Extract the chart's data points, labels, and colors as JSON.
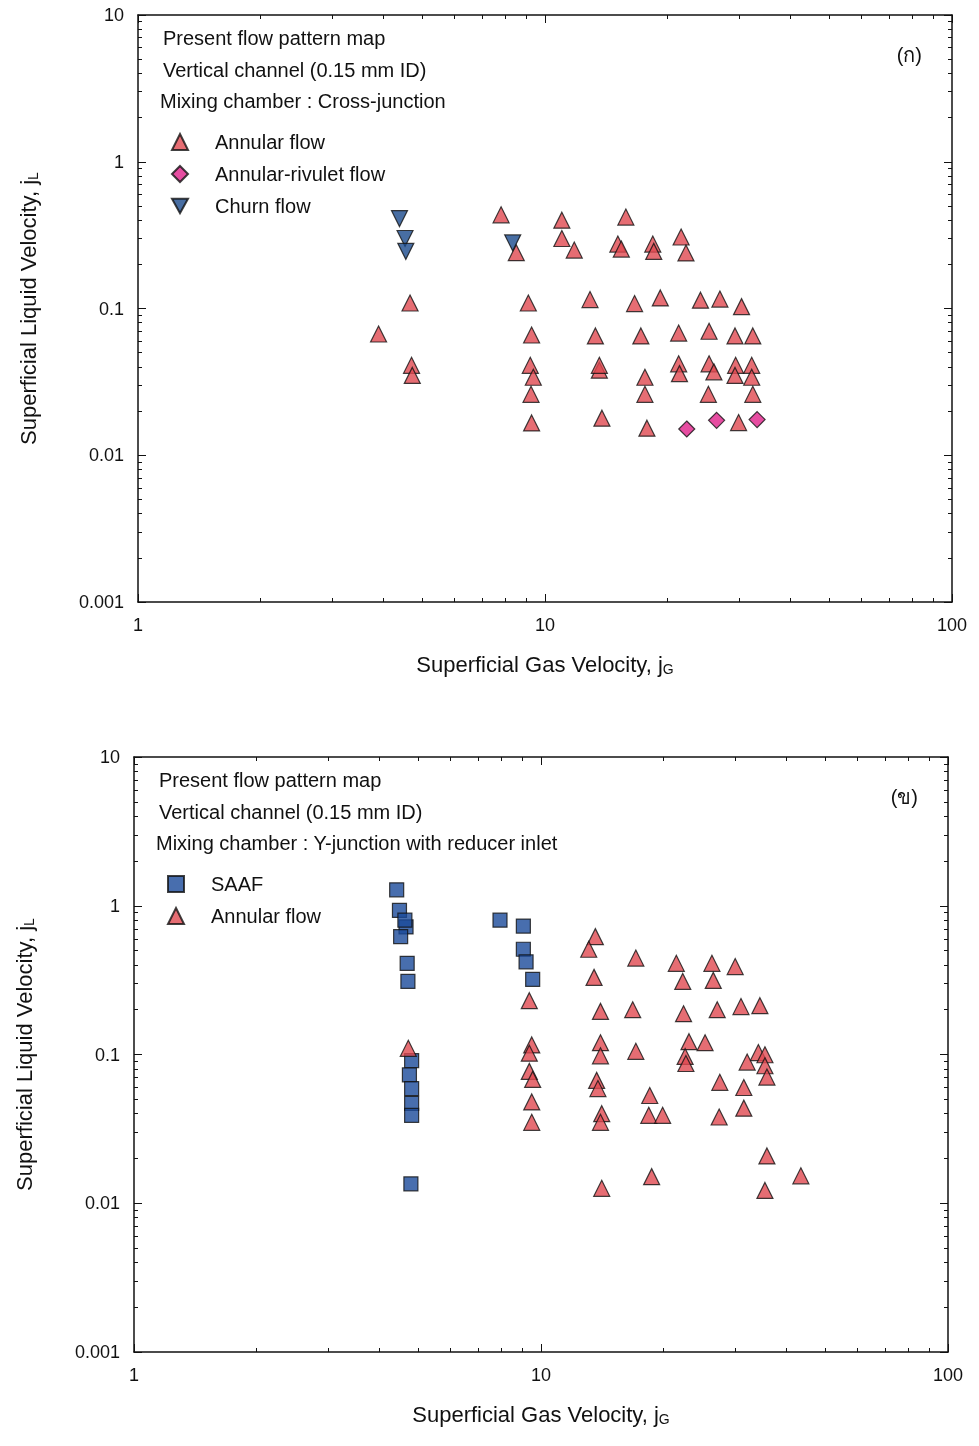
{
  "chart_data": [
    {
      "type": "scatter",
      "title": "Present flow pattern map",
      "subtitle": "Vertical channel (0.15 mm ID)",
      "annotations": [
        "Mixing chamber : Cross-junction",
        "(ก)"
      ],
      "xlabel": "Superficial Gas Velocity, j$_{G}$",
      "ylabel": "Superficial Liquid Velocity, j$_{L}$",
      "log": "xy",
      "xlim": [
        1,
        100
      ],
      "xticks": [
        1,
        10,
        100
      ],
      "ylim": [
        0.001,
        10
      ],
      "yticks": [
        0.001,
        0.01,
        0.1,
        1,
        10
      ],
      "grid": false,
      "legend": "top left",
      "series": [
        {
          "name": "Annular flow",
          "color": "#e04850",
          "marker": "triangle",
          "x": [
            7.8,
            11.0,
            15.8,
            11.0,
            11.8,
            8.5,
            15.1,
            15.4,
            18.4,
            18.5,
            21.6,
            22.2,
            4.66,
            9.1,
            12.9,
            16.6,
            19.2,
            24.1,
            26.9,
            30.4,
            3.9,
            9.27,
            13.3,
            17.2,
            21.3,
            25.3,
            29.3,
            32.4,
            4.7,
            4.72,
            9.2,
            9.36,
            13.6,
            13.6,
            17.6,
            21.3,
            21.4,
            25.3,
            26.0,
            29.4,
            29.3,
            32.2,
            32.2,
            9.24,
            17.6,
            25.2,
            32.4,
            9.27,
            13.8,
            17.8,
            29.9
          ],
          "values": [
            0.435,
            0.4,
            0.42,
            0.3,
            0.25,
            0.24,
            0.275,
            0.254,
            0.275,
            0.245,
            0.307,
            0.239,
            0.109,
            0.109,
            0.115,
            0.108,
            0.118,
            0.114,
            0.116,
            0.103,
            0.067,
            0.066,
            0.065,
            0.065,
            0.068,
            0.07,
            0.065,
            0.065,
            0.041,
            0.035,
            0.041,
            0.034,
            0.038,
            0.041,
            0.034,
            0.042,
            0.036,
            0.042,
            0.037,
            0.041,
            0.035,
            0.041,
            0.034,
            0.026,
            0.026,
            0.026,
            0.026,
            0.0166,
            0.0179,
            0.0153,
            0.0167
          ]
        },
        {
          "name": "Annular-rivulet flow",
          "color": "#e0208a",
          "marker": "diamond",
          "x": [
            22.3,
            26.4,
            33.2
          ],
          "values": [
            0.0151,
            0.0173,
            0.0175
          ]
        },
        {
          "name": "Churn flow",
          "color": "#1a4a8c",
          "marker": "triangle-down",
          "x": [
            4.39,
            4.53,
            4.55,
            8.33
          ],
          "values": [
            0.41,
            0.3,
            0.245,
            0.28
          ]
        }
      ]
    },
    {
      "type": "scatter",
      "title": "Present flow pattern map",
      "subtitle": "Vertical channel (0.15 mm ID)",
      "annotations": [
        "Mixing chamber : Y-junction with reducer inlet",
        "(ข)"
      ],
      "xlabel": "Superficial Gas Velocity, j$_{G}$",
      "ylabel": "Superficial Liquid Velocity, j$_{L}$",
      "log": "xy",
      "xlim": [
        1,
        100
      ],
      "xticks": [
        1,
        10,
        100
      ],
      "ylim": [
        0.001,
        10
      ],
      "yticks": [
        0.001,
        0.01,
        0.1,
        1,
        10
      ],
      "grid": false,
      "legend": "top left",
      "series": [
        {
          "name": "SAAF",
          "color": "#1a4a9a",
          "marker": "square",
          "x": [
            4.42,
            4.49,
            4.66,
            4.63,
            4.52,
            4.69,
            4.71,
            7.93,
            9.05,
            9.05,
            9.19,
            9.54,
            4.81,
            4.75,
            4.81,
            4.81,
            4.81,
            4.79
          ],
          "values": [
            1.28,
            0.93,
            0.72,
            0.8,
            0.62,
            0.41,
            0.31,
            0.8,
            0.73,
            0.51,
            0.42,
            0.32,
            0.091,
            0.073,
            0.059,
            0.047,
            0.039,
            0.0135
          ]
        },
        {
          "name": "Annular flow",
          "color": "#e04850",
          "marker": "triangle",
          "x": [
            4.72,
            13.6,
            13.1,
            17.1,
            21.5,
            26.3,
            30.0,
            13.5,
            22.3,
            26.5,
            9.36,
            14.0,
            16.8,
            22.4,
            27.1,
            31.0,
            34.5,
            9.49,
            9.36,
            14.0,
            14.0,
            17.1,
            23.1,
            25.3,
            22.6,
            22.7,
            34.2,
            35.5,
            32.1,
            35.5,
            35.9,
            9.36,
            9.54,
            13.7,
            13.8,
            18.5,
            27.5,
            31.5,
            31.5,
            9.49,
            9.49,
            14.1,
            14.0,
            18.4,
            19.9,
            27.4,
            35.9,
            18.7,
            43.5,
            14.1,
            35.5
          ],
          "values": [
            0.11,
            0.62,
            0.51,
            0.445,
            0.41,
            0.41,
            0.39,
            0.33,
            0.31,
            0.315,
            0.23,
            0.195,
            0.2,
            0.188,
            0.2,
            0.21,
            0.213,
            0.116,
            0.102,
            0.12,
            0.098,
            0.105,
            0.122,
            0.12,
            0.097,
            0.087,
            0.103,
            0.0996,
            0.089,
            0.084,
            0.0705,
            0.077,
            0.068,
            0.067,
            0.059,
            0.053,
            0.065,
            0.06,
            0.0436,
            0.048,
            0.035,
            0.04,
            0.035,
            0.039,
            0.039,
            0.038,
            0.0208,
            0.0151,
            0.0153,
            0.0126,
            0.0122
          ]
        }
      ]
    }
  ]
}
